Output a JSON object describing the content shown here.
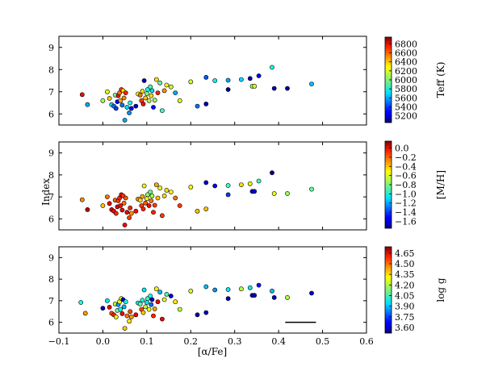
{
  "chart_data": [
    {
      "type": "scatter",
      "panel": "top",
      "xlim": [
        -0.1,
        0.6
      ],
      "ylim": [
        5.5,
        9.5
      ],
      "x_ticks": [
        "−0.1",
        "0.0",
        "0.1",
        "0.2",
        "0.3",
        "0.4",
        "0.5",
        "0.6"
      ],
      "y_ticks": [
        "6",
        "7",
        "8",
        "9"
      ],
      "show_x_tick_labels": false,
      "colorbar": {
        "label": "Teff (K)",
        "range": [
          5050,
          6950
        ],
        "ticks": [
          "5200",
          "5400",
          "5600",
          "5800",
          "6000",
          "6200",
          "6400",
          "6600",
          "6800"
        ],
        "tick_values": [
          5200,
          5400,
          5600,
          5800,
          6000,
          6200,
          6400,
          6600,
          6800
        ]
      },
      "points": [
        {
          "x": -0.047,
          "y": 6.87,
          "c": 6700
        },
        {
          "x": -0.035,
          "y": 6.42,
          "c": 5600
        },
        {
          "x": 0.0,
          "y": 6.6,
          "c": 6100
        },
        {
          "x": 0.01,
          "y": 7.0,
          "c": 6200
        },
        {
          "x": 0.015,
          "y": 6.7,
          "c": 6350
        },
        {
          "x": 0.02,
          "y": 6.42,
          "c": 5700
        },
        {
          "x": 0.025,
          "y": 6.35,
          "c": 5500
        },
        {
          "x": 0.028,
          "y": 6.85,
          "c": 6000
        },
        {
          "x": 0.03,
          "y": 6.25,
          "c": 5400
        },
        {
          "x": 0.033,
          "y": 6.55,
          "c": 5300
        },
        {
          "x": 0.035,
          "y": 6.82,
          "c": 6700
        },
        {
          "x": 0.038,
          "y": 6.95,
          "c": 6500
        },
        {
          "x": 0.04,
          "y": 6.6,
          "c": 6400
        },
        {
          "x": 0.042,
          "y": 7.1,
          "c": 6600
        },
        {
          "x": 0.044,
          "y": 6.4,
          "c": 5500
        },
        {
          "x": 0.046,
          "y": 7.05,
          "c": 6300
        },
        {
          "x": 0.048,
          "y": 6.72,
          "c": 6450
        },
        {
          "x": 0.05,
          "y": 5.72,
          "c": 5600
        },
        {
          "x": 0.052,
          "y": 6.95,
          "c": 6650
        },
        {
          "x": 0.055,
          "y": 6.3,
          "c": 5700
        },
        {
          "x": 0.06,
          "y": 6.05,
          "c": 5550
        },
        {
          "x": 0.062,
          "y": 6.5,
          "c": 5800
        },
        {
          "x": 0.065,
          "y": 6.25,
          "c": 5300
        },
        {
          "x": 0.075,
          "y": 6.35,
          "c": 5150
        },
        {
          "x": 0.08,
          "y": 6.9,
          "c": 6200
        },
        {
          "x": 0.085,
          "y": 6.85,
          "c": 6500
        },
        {
          "x": 0.088,
          "y": 6.6,
          "c": 6600
        },
        {
          "x": 0.09,
          "y": 7.02,
          "c": 6300
        },
        {
          "x": 0.092,
          "y": 6.45,
          "c": 6700
        },
        {
          "x": 0.094,
          "y": 7.5,
          "c": 5150
        },
        {
          "x": 0.097,
          "y": 6.72,
          "c": 6350
        },
        {
          "x": 0.1,
          "y": 6.92,
          "c": 6000
        },
        {
          "x": 0.102,
          "y": 7.1,
          "c": 5800
        },
        {
          "x": 0.105,
          "y": 6.6,
          "c": 6100
        },
        {
          "x": 0.108,
          "y": 7.22,
          "c": 5900
        },
        {
          "x": 0.11,
          "y": 6.82,
          "c": 6300
        },
        {
          "x": 0.112,
          "y": 7.05,
          "c": 5700
        },
        {
          "x": 0.115,
          "y": 6.3,
          "c": 5300
        },
        {
          "x": 0.118,
          "y": 6.62,
          "c": 6050
        },
        {
          "x": 0.122,
          "y": 7.55,
          "c": 6300
        },
        {
          "x": 0.125,
          "y": 6.95,
          "c": 6650
        },
        {
          "x": 0.13,
          "y": 7.4,
          "c": 5950
        },
        {
          "x": 0.135,
          "y": 6.15,
          "c": 5850
        },
        {
          "x": 0.14,
          "y": 7.05,
          "c": 6450
        },
        {
          "x": 0.145,
          "y": 7.3,
          "c": 6250
        },
        {
          "x": 0.155,
          "y": 7.22,
          "c": 6150
        },
        {
          "x": 0.165,
          "y": 6.95,
          "c": 5600
        },
        {
          "x": 0.175,
          "y": 6.6,
          "c": 6200
        },
        {
          "x": 0.2,
          "y": 7.45,
          "c": 6150
        },
        {
          "x": 0.215,
          "y": 6.35,
          "c": 5500
        },
        {
          "x": 0.235,
          "y": 7.65,
          "c": 5450
        },
        {
          "x": 0.235,
          "y": 6.45,
          "c": 5150
        },
        {
          "x": 0.255,
          "y": 7.5,
          "c": 5750
        },
        {
          "x": 0.285,
          "y": 7.52,
          "c": 5600
        },
        {
          "x": 0.285,
          "y": 7.1,
          "c": 5100
        },
        {
          "x": 0.315,
          "y": 7.55,
          "c": 5700
        },
        {
          "x": 0.335,
          "y": 7.6,
          "c": 5150
        },
        {
          "x": 0.34,
          "y": 7.25,
          "c": 6100
        },
        {
          "x": 0.345,
          "y": 7.25,
          "c": 6150
        },
        {
          "x": 0.355,
          "y": 7.72,
          "c": 5250
        },
        {
          "x": 0.385,
          "y": 8.1,
          "c": 5800
        },
        {
          "x": 0.39,
          "y": 7.15,
          "c": 5150
        },
        {
          "x": 0.42,
          "y": 7.15,
          "c": 5100
        },
        {
          "x": 0.475,
          "y": 7.35,
          "c": 5650
        }
      ]
    },
    {
      "type": "scatter",
      "panel": "middle",
      "xlim": [
        -0.1,
        0.6
      ],
      "ylim": [
        5.5,
        9.5
      ],
      "ylabel": "Index",
      "x_ticks": [
        "−0.1",
        "0.0",
        "0.1",
        "0.2",
        "0.3",
        "0.4",
        "0.5",
        "0.6"
      ],
      "y_ticks": [
        "6",
        "7",
        "8",
        "9"
      ],
      "show_x_tick_labels": false,
      "colorbar": {
        "label": "[M/H]",
        "range": [
          -1.75,
          0.15
        ],
        "ticks": [
          "0.0",
          "−0.2",
          "−0.4",
          "−0.6",
          "−0.8",
          "−1.0",
          "−1.2",
          "−1.4",
          "−1.6"
        ],
        "tick_values": [
          0.0,
          -0.2,
          -0.4,
          -0.6,
          -0.8,
          -1.0,
          -1.2,
          -1.4,
          -1.6
        ]
      },
      "points": [
        {
          "x": -0.047,
          "y": 6.87,
          "c": -0.35
        },
        {
          "x": -0.035,
          "y": 6.42,
          "c": 0.05
        },
        {
          "x": 0.0,
          "y": 6.6,
          "c": -0.45
        },
        {
          "x": 0.01,
          "y": 7.0,
          "c": -0.3
        },
        {
          "x": 0.015,
          "y": 6.7,
          "c": -0.05
        },
        {
          "x": 0.02,
          "y": 6.42,
          "c": 0.0
        },
        {
          "x": 0.025,
          "y": 6.35,
          "c": -0.1
        },
        {
          "x": 0.028,
          "y": 6.85,
          "c": -0.25
        },
        {
          "x": 0.03,
          "y": 6.25,
          "c": -0.15
        },
        {
          "x": 0.033,
          "y": 6.55,
          "c": -0.05
        },
        {
          "x": 0.035,
          "y": 6.82,
          "c": -0.2
        },
        {
          "x": 0.038,
          "y": 6.95,
          "c": -0.15
        },
        {
          "x": 0.04,
          "y": 6.6,
          "c": -0.1
        },
        {
          "x": 0.042,
          "y": 7.1,
          "c": -0.1
        },
        {
          "x": 0.044,
          "y": 6.4,
          "c": -0.05
        },
        {
          "x": 0.046,
          "y": 7.05,
          "c": -0.2
        },
        {
          "x": 0.048,
          "y": 6.72,
          "c": -0.3
        },
        {
          "x": 0.05,
          "y": 5.72,
          "c": -0.1
        },
        {
          "x": 0.052,
          "y": 6.95,
          "c": -0.25
        },
        {
          "x": 0.055,
          "y": 6.3,
          "c": -0.05
        },
        {
          "x": 0.06,
          "y": 6.05,
          "c": -0.2
        },
        {
          "x": 0.062,
          "y": 6.5,
          "c": -0.15
        },
        {
          "x": 0.065,
          "y": 6.25,
          "c": -0.35
        },
        {
          "x": 0.075,
          "y": 6.35,
          "c": -0.1
        },
        {
          "x": 0.08,
          "y": 6.9,
          "c": -0.35
        },
        {
          "x": 0.085,
          "y": 6.85,
          "c": -0.5
        },
        {
          "x": 0.088,
          "y": 6.6,
          "c": -0.2
        },
        {
          "x": 0.09,
          "y": 7.02,
          "c": -0.4
        },
        {
          "x": 0.092,
          "y": 6.45,
          "c": -0.15
        },
        {
          "x": 0.094,
          "y": 7.5,
          "c": -0.6
        },
        {
          "x": 0.097,
          "y": 6.72,
          "c": -0.25
        },
        {
          "x": 0.1,
          "y": 6.92,
          "c": -0.55
        },
        {
          "x": 0.102,
          "y": 7.1,
          "c": -0.75
        },
        {
          "x": 0.105,
          "y": 6.6,
          "c": -0.1
        },
        {
          "x": 0.108,
          "y": 7.22,
          "c": -0.85
        },
        {
          "x": 0.11,
          "y": 6.82,
          "c": -0.3
        },
        {
          "x": 0.112,
          "y": 7.05,
          "c": -0.7
        },
        {
          "x": 0.115,
          "y": 6.3,
          "c": -0.15
        },
        {
          "x": 0.118,
          "y": 6.62,
          "c": -0.2
        },
        {
          "x": 0.122,
          "y": 7.55,
          "c": -0.4
        },
        {
          "x": 0.125,
          "y": 6.95,
          "c": -0.45
        },
        {
          "x": 0.13,
          "y": 7.4,
          "c": -0.6
        },
        {
          "x": 0.135,
          "y": 6.15,
          "c": -0.2
        },
        {
          "x": 0.14,
          "y": 7.05,
          "c": -0.5
        },
        {
          "x": 0.145,
          "y": 7.3,
          "c": -0.5
        },
        {
          "x": 0.155,
          "y": 7.22,
          "c": -0.55
        },
        {
          "x": 0.165,
          "y": 6.95,
          "c": -0.3
        },
        {
          "x": 0.175,
          "y": 6.6,
          "c": -0.2
        },
        {
          "x": 0.2,
          "y": 7.45,
          "c": -0.55
        },
        {
          "x": 0.215,
          "y": 6.35,
          "c": -0.45
        },
        {
          "x": 0.235,
          "y": 7.65,
          "c": -1.6
        },
        {
          "x": 0.235,
          "y": 6.45,
          "c": -0.45
        },
        {
          "x": 0.255,
          "y": 7.5,
          "c": -1.5
        },
        {
          "x": 0.285,
          "y": 7.52,
          "c": -0.9
        },
        {
          "x": 0.285,
          "y": 7.1,
          "c": -1.4
        },
        {
          "x": 0.315,
          "y": 7.55,
          "c": -0.5
        },
        {
          "x": 0.335,
          "y": 7.6,
          "c": -0.6
        },
        {
          "x": 0.34,
          "y": 7.25,
          "c": -1.6
        },
        {
          "x": 0.345,
          "y": 7.25,
          "c": -1.55
        },
        {
          "x": 0.355,
          "y": 7.72,
          "c": -0.9
        },
        {
          "x": 0.385,
          "y": 8.1,
          "c": -1.7
        },
        {
          "x": 0.39,
          "y": 7.15,
          "c": -0.6
        },
        {
          "x": 0.42,
          "y": 7.15,
          "c": -0.75
        },
        {
          "x": 0.475,
          "y": 7.35,
          "c": -0.85
        }
      ]
    },
    {
      "type": "scatter",
      "panel": "bottom",
      "xlim": [
        -0.1,
        0.6
      ],
      "ylim": [
        5.5,
        9.5
      ],
      "xlabel": "[α/Fe]",
      "x_ticks": [
        "−0.1",
        "0.0",
        "0.1",
        "0.2",
        "0.3",
        "0.4",
        "0.5",
        "0.6"
      ],
      "y_ticks": [
        "6",
        "7",
        "8",
        "9"
      ],
      "show_x_tick_labels": true,
      "error_bar": {
        "x0": 0.415,
        "x1": 0.485,
        "y": 6.0
      },
      "colorbar": {
        "label": "log g",
        "range": [
          3.52,
          4.74
        ],
        "ticks": [
          "3.60",
          "3.75",
          "3.90",
          "4.05",
          "4.20",
          "4.35",
          "4.50",
          "4.65"
        ],
        "tick_values": [
          3.6,
          3.75,
          3.9,
          4.05,
          4.2,
          4.35,
          4.5,
          4.65
        ]
      },
      "points": [
        {
          "x": -0.05,
          "y": 6.92,
          "c": 4.0
        },
        {
          "x": -0.04,
          "y": 6.42,
          "c": 4.4
        },
        {
          "x": 0.0,
          "y": 6.65,
          "c": 3.6
        },
        {
          "x": 0.01,
          "y": 7.0,
          "c": 3.95
        },
        {
          "x": 0.015,
          "y": 6.7,
          "c": 4.6
        },
        {
          "x": 0.02,
          "y": 6.42,
          "c": 4.5
        },
        {
          "x": 0.025,
          "y": 6.35,
          "c": 4.55
        },
        {
          "x": 0.028,
          "y": 6.85,
          "c": 4.2
        },
        {
          "x": 0.03,
          "y": 6.25,
          "c": 4.3
        },
        {
          "x": 0.033,
          "y": 6.55,
          "c": 4.1
        },
        {
          "x": 0.035,
          "y": 6.82,
          "c": 3.85
        },
        {
          "x": 0.038,
          "y": 6.95,
          "c": 4.25
        },
        {
          "x": 0.04,
          "y": 6.6,
          "c": 4.0
        },
        {
          "x": 0.042,
          "y": 7.1,
          "c": 4.3
        },
        {
          "x": 0.044,
          "y": 6.4,
          "c": 4.6
        },
        {
          "x": 0.046,
          "y": 7.05,
          "c": 3.6
        },
        {
          "x": 0.048,
          "y": 6.72,
          "c": 3.9
        },
        {
          "x": 0.05,
          "y": 5.72,
          "c": 4.35
        },
        {
          "x": 0.052,
          "y": 6.95,
          "c": 4.0
        },
        {
          "x": 0.055,
          "y": 6.3,
          "c": 4.45
        },
        {
          "x": 0.06,
          "y": 6.05,
          "c": 4.3
        },
        {
          "x": 0.062,
          "y": 6.5,
          "c": 4.5
        },
        {
          "x": 0.065,
          "y": 6.25,
          "c": 4.4
        },
        {
          "x": 0.075,
          "y": 6.35,
          "c": 4.6
        },
        {
          "x": 0.08,
          "y": 6.9,
          "c": 3.95
        },
        {
          "x": 0.085,
          "y": 6.85,
          "c": 4.1
        },
        {
          "x": 0.088,
          "y": 6.6,
          "c": 4.5
        },
        {
          "x": 0.09,
          "y": 7.02,
          "c": 4.0
        },
        {
          "x": 0.092,
          "y": 6.45,
          "c": 4.35
        },
        {
          "x": 0.094,
          "y": 7.5,
          "c": 3.95
        },
        {
          "x": 0.097,
          "y": 6.72,
          "c": 4.2
        },
        {
          "x": 0.1,
          "y": 6.92,
          "c": 3.95
        },
        {
          "x": 0.102,
          "y": 7.1,
          "c": 4.05
        },
        {
          "x": 0.105,
          "y": 6.6,
          "c": 4.25
        },
        {
          "x": 0.108,
          "y": 7.22,
          "c": 4.0
        },
        {
          "x": 0.11,
          "y": 6.82,
          "c": 3.8
        },
        {
          "x": 0.112,
          "y": 7.05,
          "c": 3.6
        },
        {
          "x": 0.115,
          "y": 6.3,
          "c": 4.55
        },
        {
          "x": 0.118,
          "y": 6.62,
          "c": 4.4
        },
        {
          "x": 0.122,
          "y": 7.55,
          "c": 4.3
        },
        {
          "x": 0.125,
          "y": 6.95,
          "c": 4.6
        },
        {
          "x": 0.13,
          "y": 7.4,
          "c": 3.9
        },
        {
          "x": 0.135,
          "y": 6.15,
          "c": 4.6
        },
        {
          "x": 0.14,
          "y": 7.05,
          "c": 4.25
        },
        {
          "x": 0.145,
          "y": 7.3,
          "c": 4.05
        },
        {
          "x": 0.155,
          "y": 7.22,
          "c": 3.65
        },
        {
          "x": 0.165,
          "y": 6.95,
          "c": 4.3
        },
        {
          "x": 0.175,
          "y": 6.6,
          "c": 4.2
        },
        {
          "x": 0.2,
          "y": 7.45,
          "c": 4.25
        },
        {
          "x": 0.215,
          "y": 6.35,
          "c": 3.6
        },
        {
          "x": 0.235,
          "y": 7.65,
          "c": 3.9
        },
        {
          "x": 0.235,
          "y": 6.45,
          "c": 3.6
        },
        {
          "x": 0.255,
          "y": 7.5,
          "c": 3.85
        },
        {
          "x": 0.285,
          "y": 7.52,
          "c": 3.95
        },
        {
          "x": 0.285,
          "y": 7.1,
          "c": 3.6
        },
        {
          "x": 0.315,
          "y": 7.55,
          "c": 4.2
        },
        {
          "x": 0.335,
          "y": 7.6,
          "c": 3.95
        },
        {
          "x": 0.34,
          "y": 7.25,
          "c": 3.6
        },
        {
          "x": 0.345,
          "y": 7.25,
          "c": 3.6
        },
        {
          "x": 0.355,
          "y": 7.72,
          "c": 3.7
        },
        {
          "x": 0.385,
          "y": 7.45,
          "c": 3.9
        },
        {
          "x": 0.39,
          "y": 7.15,
          "c": 3.6
        },
        {
          "x": 0.42,
          "y": 7.15,
          "c": 4.2
        },
        {
          "x": 0.475,
          "y": 7.35,
          "c": 3.6
        }
      ]
    }
  ]
}
